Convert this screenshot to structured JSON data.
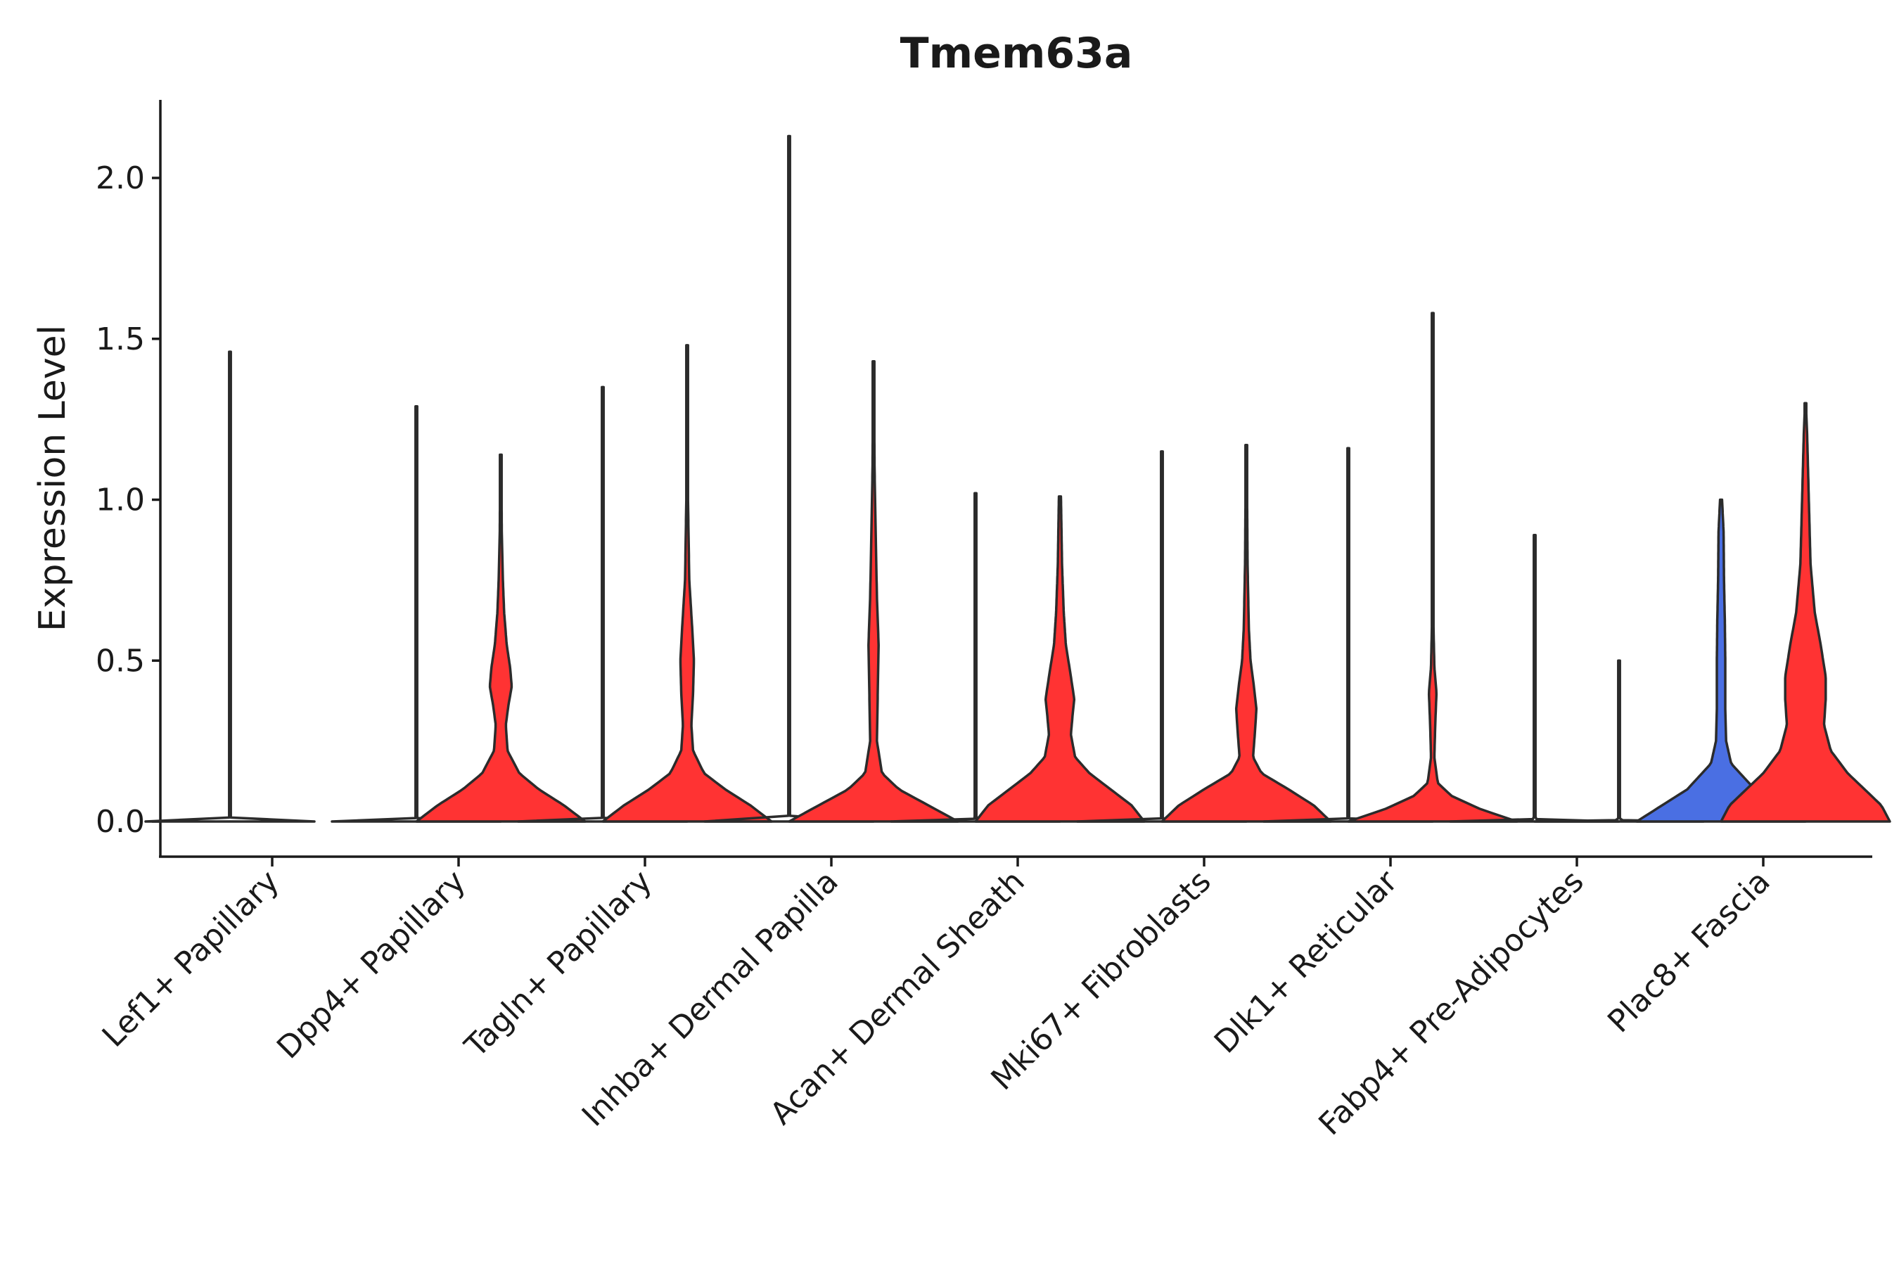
{
  "chart_data": {
    "type": "violin",
    "title": "Tmem63a",
    "xlabel": "",
    "ylabel": "Expression Level",
    "ylim": [
      -0.11,
      2.25
    ],
    "yticks": [
      {
        "value": 0.0,
        "label": "0.0"
      },
      {
        "value": 0.5,
        "label": "0.5"
      },
      {
        "value": 1.0,
        "label": "1.0"
      },
      {
        "value": 1.5,
        "label": "1.5"
      },
      {
        "value": 2.0,
        "label": "2.0"
      }
    ],
    "colors": {
      "red": "#FF3333",
      "blue": "#4A6FE3",
      "outline": "#2b2b2b"
    },
    "categories": [
      {
        "label": "Lef1+ Papillary",
        "violins": [
          {
            "color": "",
            "max": 1.46,
            "profile": [
              [
                0,
                1
              ],
              [
                0.003,
                0.05
              ],
              [
                0.01,
                0.004
              ],
              [
                1.46,
                0.004
              ]
            ]
          }
        ]
      },
      {
        "label": "Dpp4+ Papillary",
        "violins": [
          {
            "color": "",
            "max": 1.29,
            "profile": [
              [
                0,
                1
              ],
              [
                0.003,
                0.05
              ],
              [
                0.01,
                0.004
              ],
              [
                1.29,
                0.004
              ]
            ]
          },
          {
            "color": "red",
            "max": 1.14,
            "profile": [
              [
                0,
                1
              ],
              [
                0.05,
                0.75
              ],
              [
                0.1,
                0.45
              ],
              [
                0.15,
                0.22
              ],
              [
                0.22,
                0.08
              ],
              [
                0.3,
                0.06
              ],
              [
                0.36,
                0.09
              ],
              [
                0.42,
                0.13
              ],
              [
                0.48,
                0.11
              ],
              [
                0.55,
                0.07
              ],
              [
                0.65,
                0.04
              ],
              [
                0.75,
                0.025
              ],
              [
                0.9,
                0.012
              ],
              [
                1.14,
                0.006
              ]
            ]
          }
        ]
      },
      {
        "label": "Tagln+ Papillary",
        "violins": [
          {
            "color": "",
            "max": 1.35,
            "profile": [
              [
                0,
                1
              ],
              [
                0.003,
                0.05
              ],
              [
                0.01,
                0.004
              ],
              [
                1.35,
                0.004
              ]
            ]
          },
          {
            "color": "red",
            "max": 1.48,
            "profile": [
              [
                0,
                1
              ],
              [
                0.05,
                0.75
              ],
              [
                0.1,
                0.45
              ],
              [
                0.15,
                0.2
              ],
              [
                0.22,
                0.07
              ],
              [
                0.3,
                0.05
              ],
              [
                0.4,
                0.07
              ],
              [
                0.5,
                0.08
              ],
              [
                0.6,
                0.06
              ],
              [
                0.75,
                0.025
              ],
              [
                1.0,
                0.01
              ],
              [
                1.48,
                0.005
              ]
            ]
          }
        ]
      },
      {
        "label": "Inhba+ Dermal Papilla",
        "violins": [
          {
            "color": "",
            "max": 2.13,
            "profile": [
              [
                0,
                1
              ],
              [
                0.003,
                0.05
              ],
              [
                0.01,
                0.004
              ],
              [
                2.13,
                0.004
              ]
            ]
          },
          {
            "color": "red",
            "max": 1.43,
            "profile": [
              [
                0,
                1
              ],
              [
                0.05,
                0.65
              ],
              [
                0.1,
                0.3
              ],
              [
                0.15,
                0.1
              ],
              [
                0.25,
                0.04
              ],
              [
                0.4,
                0.05
              ],
              [
                0.55,
                0.06
              ],
              [
                0.7,
                0.04
              ],
              [
                0.9,
                0.025
              ],
              [
                1.1,
                0.012
              ],
              [
                1.43,
                0.005
              ]
            ]
          }
        ]
      },
      {
        "label": "Acan+ Dermal Sheath",
        "violins": [
          {
            "color": "",
            "max": 1.02,
            "profile": [
              [
                0,
                1
              ],
              [
                0.003,
                0.05
              ],
              [
                0.01,
                0.004
              ],
              [
                1.02,
                0.004
              ]
            ]
          },
          {
            "color": "red",
            "max": 1.01,
            "profile": [
              [
                0,
                1
              ],
              [
                0.05,
                0.85
              ],
              [
                0.1,
                0.6
              ],
              [
                0.15,
                0.35
              ],
              [
                0.2,
                0.18
              ],
              [
                0.27,
                0.13
              ],
              [
                0.33,
                0.15
              ],
              [
                0.38,
                0.17
              ],
              [
                0.45,
                0.13
              ],
              [
                0.55,
                0.07
              ],
              [
                0.65,
                0.045
              ],
              [
                0.8,
                0.025
              ],
              [
                1.01,
                0.012
              ]
            ]
          }
        ]
      },
      {
        "label": "Mki67+ Fibroblasts",
        "violins": [
          {
            "color": "",
            "max": 1.15,
            "profile": [
              [
                0,
                1
              ],
              [
                0.003,
                0.05
              ],
              [
                0.01,
                0.004
              ],
              [
                1.15,
                0.004
              ]
            ]
          },
          {
            "color": "red",
            "max": 1.17,
            "profile": [
              [
                0,
                1
              ],
              [
                0.05,
                0.8
              ],
              [
                0.1,
                0.5
              ],
              [
                0.15,
                0.18
              ],
              [
                0.2,
                0.08
              ],
              [
                0.27,
                0.1
              ],
              [
                0.35,
                0.12
              ],
              [
                0.42,
                0.09
              ],
              [
                0.5,
                0.05
              ],
              [
                0.6,
                0.03
              ],
              [
                0.8,
                0.015
              ],
              [
                1.17,
                0.005
              ]
            ]
          }
        ]
      },
      {
        "label": "Dlk1+ Reticular",
        "violins": [
          {
            "color": "",
            "max": 1.16,
            "profile": [
              [
                0,
                1
              ],
              [
                0.003,
                0.05
              ],
              [
                0.01,
                0.004
              ],
              [
                1.16,
                0.004
              ]
            ]
          },
          {
            "color": "red",
            "max": 1.58,
            "profile": [
              [
                0,
                1
              ],
              [
                0.04,
                0.55
              ],
              [
                0.08,
                0.22
              ],
              [
                0.12,
                0.06
              ],
              [
                0.2,
                0.02
              ],
              [
                0.3,
                0.03
              ],
              [
                0.4,
                0.045
              ],
              [
                0.48,
                0.02
              ],
              [
                0.6,
                0.01
              ],
              [
                0.9,
                0.006
              ],
              [
                1.58,
                0.004
              ]
            ]
          }
        ]
      },
      {
        "label": "Fabp4+ Pre-Adipocytes",
        "violins": [
          {
            "color": "",
            "max": 0.89,
            "profile": [
              [
                0,
                1
              ],
              [
                0.003,
                0.05
              ],
              [
                0.01,
                0.004
              ],
              [
                0.89,
                0.004
              ]
            ]
          },
          {
            "color": "",
            "max": 0.5,
            "profile": [
              [
                0,
                1
              ],
              [
                0.003,
                0.05
              ],
              [
                0.01,
                0.004
              ],
              [
                0.5,
                0.004
              ]
            ]
          }
        ]
      },
      {
        "label": "Plac8+ Fascia",
        "violins": [
          {
            "color": "blue",
            "max": 1.0,
            "profile": [
              [
                0,
                1
              ],
              [
                0.05,
                0.7
              ],
              [
                0.1,
                0.4
              ],
              [
                0.18,
                0.12
              ],
              [
                0.25,
                0.06
              ],
              [
                0.35,
                0.05
              ],
              [
                0.5,
                0.05
              ],
              [
                0.62,
                0.045
              ],
              [
                0.75,
                0.035
              ],
              [
                0.9,
                0.03
              ],
              [
                1.0,
                0.012
              ]
            ]
          },
          {
            "color": "red",
            "max": 1.3,
            "profile": [
              [
                0,
                1
              ],
              [
                0.05,
                0.9
              ],
              [
                0.1,
                0.7
              ],
              [
                0.15,
                0.5
              ],
              [
                0.22,
                0.3
              ],
              [
                0.3,
                0.22
              ],
              [
                0.38,
                0.24
              ],
              [
                0.45,
                0.24
              ],
              [
                0.55,
                0.18
              ],
              [
                0.65,
                0.11
              ],
              [
                0.8,
                0.06
              ],
              [
                1.0,
                0.04
              ],
              [
                1.2,
                0.02
              ],
              [
                1.3,
                0.005
              ]
            ]
          }
        ]
      }
    ]
  }
}
